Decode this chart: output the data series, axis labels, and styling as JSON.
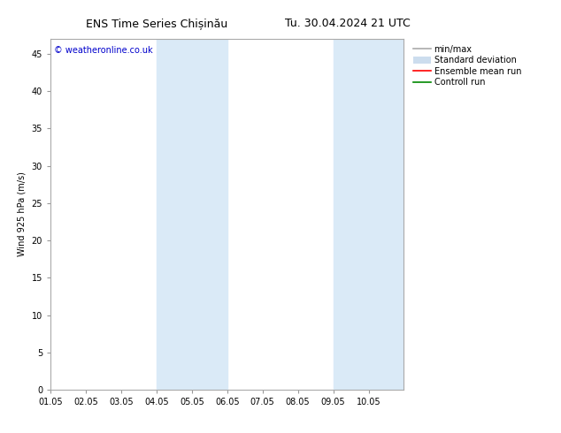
{
  "title_left": "ENS Time Series Chișinău",
  "title_right": "Tu. 30.04.2024 21 UTC",
  "ylabel": "Wind 925 hPa (m/s)",
  "watermark": "© weatheronline.co.uk",
  "watermark_color": "#0000cc",
  "ylim": [
    0,
    47
  ],
  "yticks": [
    0,
    5,
    10,
    15,
    20,
    25,
    30,
    35,
    40,
    45
  ],
  "xlim_start": 0,
  "xlim_end": 10,
  "xtick_labels": [
    "01.05",
    "02.05",
    "03.05",
    "04.05",
    "05.05",
    "06.05",
    "07.05",
    "08.05",
    "09.05",
    "10.05"
  ],
  "xtick_positions": [
    0,
    1,
    2,
    3,
    4,
    5,
    6,
    7,
    8,
    9
  ],
  "shade_bands": [
    {
      "x_start": 3.0,
      "x_end": 5.0
    },
    {
      "x_start": 8.0,
      "x_end": 10.0
    }
  ],
  "shade_color": "#daeaf7",
  "bg_color": "#ffffff",
  "plot_bg_color": "#ffffff",
  "legend_items": [
    {
      "label": "min/max",
      "color": "#aaaaaa",
      "lw": 1.2
    },
    {
      "label": "Standard deviation",
      "color": "#ccddee",
      "lw": 6
    },
    {
      "label": "Ensemble mean run",
      "color": "#ff0000",
      "lw": 1.2
    },
    {
      "label": "Controll run",
      "color": "#008800",
      "lw": 1.2
    }
  ],
  "title_fontsize": 9,
  "axis_fontsize": 7,
  "tick_fontsize": 7,
  "legend_fontsize": 7
}
